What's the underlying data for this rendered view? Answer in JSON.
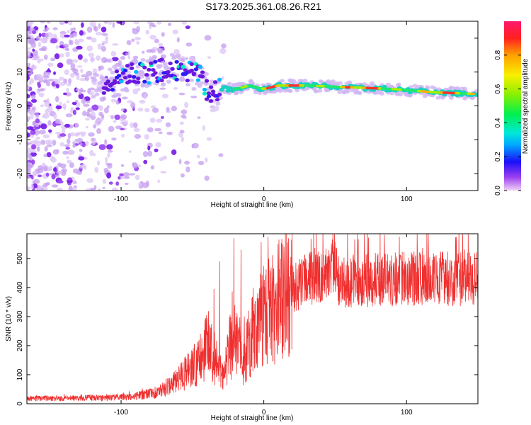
{
  "title": "S173.2025.361.08.26.R21",
  "chart_data": [
    {
      "type": "heatmap",
      "name": "spectrogram",
      "xlabel": "Height of straight line (km)",
      "ylabel": "Frequency (Hz)",
      "xlim": [
        -166,
        150
      ],
      "ylim": [
        -25,
        25
      ],
      "xticks": [
        -100,
        0,
        100
      ],
      "xtick_labels": [
        "-100",
        "0",
        "100"
      ],
      "yticks": [
        -20,
        -10,
        0,
        10,
        20
      ],
      "ytick_labels": [
        "-20",
        "-10",
        "0",
        "10",
        "20"
      ],
      "ridge": [
        {
          "x": -110,
          "y": 6
        },
        {
          "x": -95,
          "y": 9
        },
        {
          "x": -80,
          "y": 10
        },
        {
          "x": -65,
          "y": 11
        },
        {
          "x": -55,
          "y": 10
        },
        {
          "x": -45,
          "y": 9
        },
        {
          "x": -38,
          "y": 3
        },
        {
          "x": -30,
          "y": 5
        },
        {
          "x": -20,
          "y": 5
        },
        {
          "x": -10,
          "y": 6
        },
        {
          "x": 0,
          "y": 5
        },
        {
          "x": 10,
          "y": 6
        },
        {
          "x": 30,
          "y": 6
        },
        {
          "x": 60,
          "y": 5.5
        },
        {
          "x": 90,
          "y": 5
        },
        {
          "x": 120,
          "y": 4
        },
        {
          "x": 150,
          "y": 3.5
        }
      ],
      "colorbar": {
        "label": "Normalized spectral amplitude",
        "range": [
          0,
          1
        ],
        "ticks": [
          0.0,
          0.2,
          0.4,
          0.6,
          0.8
        ],
        "tick_labels": [
          "0.0",
          "0.2",
          "0.4",
          "0.6",
          "0.8"
        ]
      }
    },
    {
      "type": "line",
      "name": "snr",
      "xlabel": "Height of straight line (km)",
      "ylabel": "SNR (10 * v/v)",
      "color": "#f03030",
      "xlim": [
        -166,
        150
      ],
      "ylim": [
        0,
        585
      ],
      "xticks": [
        -100,
        0,
        100
      ],
      "xtick_labels": [
        "-100",
        "0",
        "100"
      ],
      "yticks": [
        0,
        100,
        200,
        300,
        400,
        500
      ],
      "ytick_labels": [
        "0",
        "100",
        "200",
        "300",
        "400",
        "500"
      ],
      "envelope": [
        {
          "x": -166,
          "y": 18
        },
        {
          "x": -120,
          "y": 20
        },
        {
          "x": -90,
          "y": 25
        },
        {
          "x": -75,
          "y": 40
        },
        {
          "x": -60,
          "y": 80
        },
        {
          "x": -45,
          "y": 150
        },
        {
          "x": -38,
          "y": 210
        },
        {
          "x": -33,
          "y": 140
        },
        {
          "x": -28,
          "y": 90
        },
        {
          "x": -24,
          "y": 190
        },
        {
          "x": -19,
          "y": 220
        },
        {
          "x": -14,
          "y": 150
        },
        {
          "x": -8,
          "y": 250
        },
        {
          "x": 0,
          "y": 300
        },
        {
          "x": 10,
          "y": 350
        },
        {
          "x": 20,
          "y": 400
        },
        {
          "x": 35,
          "y": 440
        },
        {
          "x": 50,
          "y": 460
        },
        {
          "x": 52,
          "y": 420
        },
        {
          "x": 100,
          "y": 430
        },
        {
          "x": 150,
          "y": 430
        }
      ],
      "spikes": [
        {
          "x": -35,
          "y": 395
        },
        {
          "x": -31,
          "y": 490
        },
        {
          "x": -21,
          "y": 570
        },
        {
          "x": -16,
          "y": 530
        },
        {
          "x": 48,
          "y": 565
        },
        {
          "x": 95,
          "y": 575
        }
      ]
    }
  ]
}
